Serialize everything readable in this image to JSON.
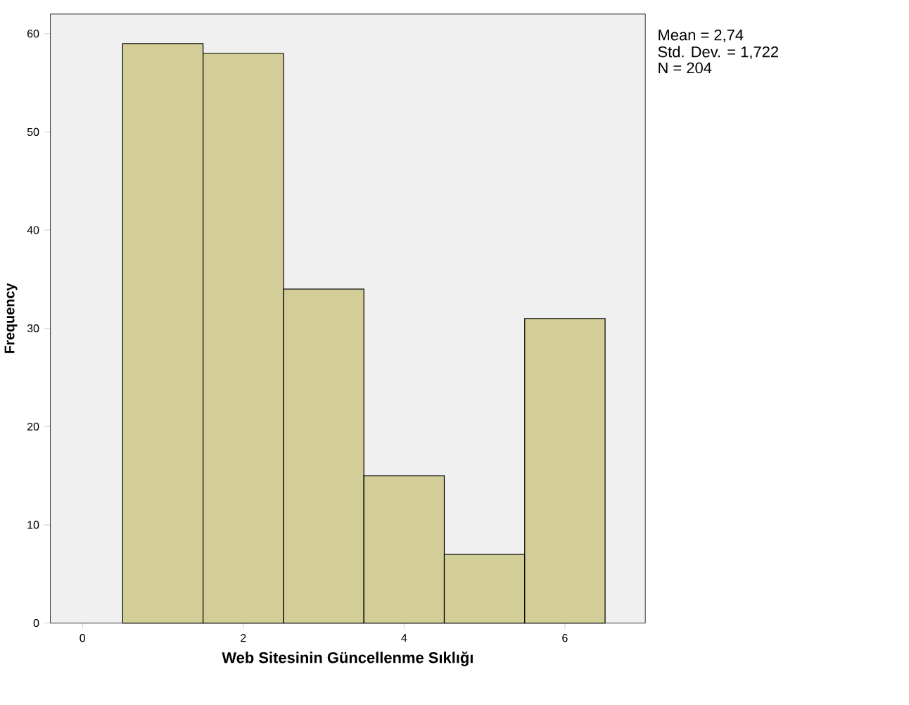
{
  "chart_data": {
    "type": "histogram",
    "xlabel": "Web Sitesinin Güncellenme Sıklığı",
    "ylabel": "Frequency",
    "bins": [
      0.5,
      1.5,
      2.5,
      3.5,
      4.5,
      5.5,
      6.5
    ],
    "values": [
      59,
      58,
      34,
      15,
      7,
      31
    ],
    "color": "#d3ce98",
    "xlim": [
      -0.4,
      7
    ],
    "ylim": [
      0,
      62
    ],
    "xticks": [
      0,
      2,
      4,
      6
    ],
    "yticks": [
      0,
      10,
      20,
      30,
      40,
      50,
      60
    ],
    "annotations": [
      "Mean = 2,74",
      "Std. Dev. = 1,722",
      "N = 204"
    ]
  }
}
